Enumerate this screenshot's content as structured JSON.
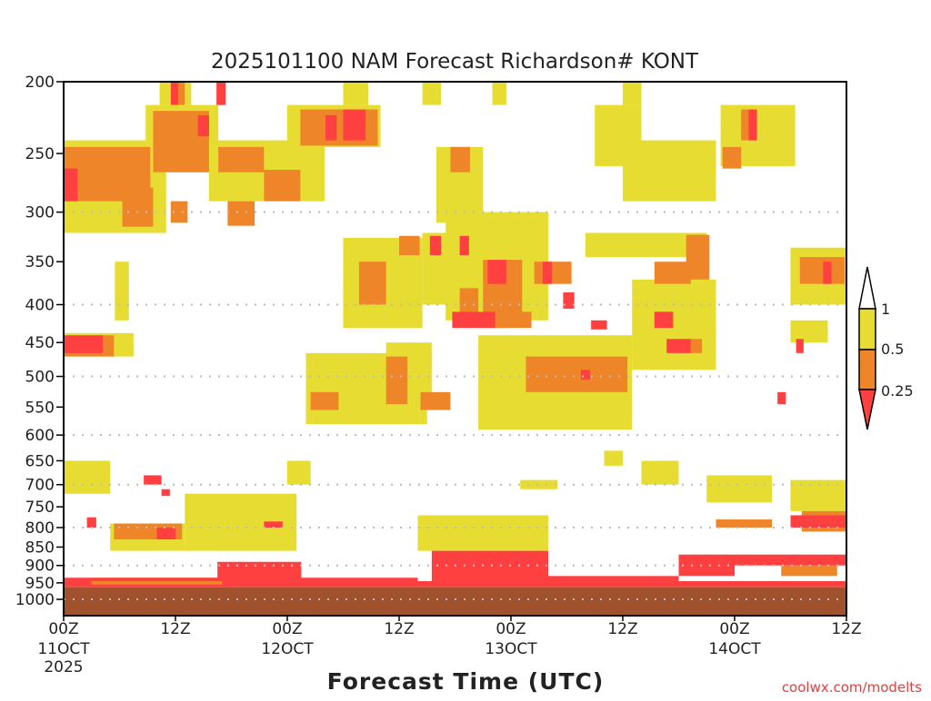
{
  "chart_data": {
    "type": "heatmap",
    "title": "2025101100 NAM Forecast Richardson# KONT",
    "xlabel": "Forecast Time (UTC)",
    "ylabel": "",
    "watermark": "coolwx.com/modelts",
    "x_unit": "forecast hour",
    "xlim": [
      0,
      84
    ],
    "y_unit": "hPa",
    "y_scale": "log",
    "ylim": [
      200,
      1052
    ],
    "y_ticks": [
      200,
      250,
      300,
      350,
      400,
      450,
      500,
      550,
      600,
      650,
      700,
      750,
      800,
      850,
      900,
      950,
      1000
    ],
    "y_gridlines": [
      300,
      400,
      500,
      600,
      700,
      800,
      900,
      1000
    ],
    "x_ticks": [
      {
        "hour": 0,
        "label": "00Z",
        "date": "11OCT",
        "year": "2025"
      },
      {
        "hour": 12,
        "label": "12Z"
      },
      {
        "hour": 24,
        "label": "00Z",
        "date": "12OCT"
      },
      {
        "hour": 36,
        "label": "12Z"
      },
      {
        "hour": 48,
        "label": "00Z",
        "date": "13OCT"
      },
      {
        "hour": 60,
        "label": "12Z"
      },
      {
        "hour": 72,
        "label": "00Z",
        "date": "14OCT"
      },
      {
        "hour": 84,
        "label": "12Z"
      }
    ],
    "legend": {
      "placement": "right",
      "bins": [
        {
          "name": "> 1",
          "color": "#ffffff"
        },
        {
          "name": "0.5 - 1",
          "color": "#e6dc32",
          "label": "1"
        },
        {
          "name": "0.25 - 0.5",
          "color": "#ef8529",
          "label": "0.5"
        },
        {
          "name": "< 0.25",
          "color": "#ff4040",
          "label": "0.25"
        }
      ]
    },
    "colors": {
      "y": "#e6dc32",
      "o": "#ef8529",
      "r": "#ff4040",
      "ground": "#a0522d"
    },
    "ground_pressure": 963,
    "patches_note": "each patch = [hour_start, hour_end, p_top, p_bottom, category] where category y=0.5-1, o=0.25-0.5, r=<0.25",
    "patches": [
      [
        0,
        11,
        240,
        320,
        "y"
      ],
      [
        8.8,
        16.6,
        215,
        265,
        "y"
      ],
      [
        10.3,
        13.7,
        200,
        215,
        "y"
      ],
      [
        15.6,
        22,
        240,
        290,
        "y"
      ],
      [
        21.5,
        28,
        240,
        290,
        "y"
      ],
      [
        24,
        34,
        215,
        245,
        "y"
      ],
      [
        30,
        32.7,
        200,
        215,
        "y"
      ],
      [
        30,
        38.5,
        325,
        430,
        "y"
      ],
      [
        34.6,
        39.5,
        450,
        550,
        "y"
      ],
      [
        26,
        39,
        465,
        580,
        "y"
      ],
      [
        40,
        45,
        245,
        310,
        "y"
      ],
      [
        41,
        52,
        300,
        420,
        "y"
      ],
      [
        38.5,
        44,
        320,
        400,
        "y"
      ],
      [
        44.5,
        61,
        440,
        590,
        "y"
      ],
      [
        57,
        62,
        215,
        260,
        "y"
      ],
      [
        56,
        69,
        320,
        345,
        "y"
      ],
      [
        60,
        70,
        240,
        290,
        "y"
      ],
      [
        61,
        70,
        370,
        490,
        "y"
      ],
      [
        70.5,
        78.5,
        215,
        260,
        "y"
      ],
      [
        78,
        84,
        335,
        400,
        "y"
      ],
      [
        78,
        82,
        420,
        450,
        "y"
      ],
      [
        62,
        66,
        650,
        700,
        "y"
      ],
      [
        69,
        76,
        680,
        740,
        "y"
      ],
      [
        78,
        84,
        690,
        760,
        "y"
      ],
      [
        0,
        5,
        650,
        720,
        "y"
      ],
      [
        0,
        7.5,
        437,
        470,
        "y"
      ],
      [
        5.5,
        7,
        350,
        420,
        "y"
      ],
      [
        13,
        25,
        720,
        860,
        "y"
      ],
      [
        5,
        13,
        790,
        860,
        "y"
      ],
      [
        38,
        52,
        770,
        860,
        "y"
      ],
      [
        24,
        26.5,
        650,
        700,
        "y"
      ],
      [
        49,
        53,
        690,
        710,
        "y"
      ],
      [
        58,
        60,
        630,
        660,
        "y"
      ],
      [
        46,
        47.5,
        200,
        215,
        "y"
      ],
      [
        38.5,
        40.5,
        200,
        215,
        "y"
      ],
      [
        60,
        62,
        200,
        215,
        "y"
      ],
      [
        0,
        84,
        945,
        963,
        "r"
      ],
      [
        0,
        9.3,
        245,
        290,
        "o"
      ],
      [
        6.3,
        9.6,
        278,
        314,
        "o"
      ],
      [
        9.6,
        15.6,
        219,
        265,
        "o"
      ],
      [
        16.6,
        21.5,
        245,
        265,
        "o"
      ],
      [
        17.6,
        20.5,
        290,
        313,
        "o"
      ],
      [
        11.5,
        13.3,
        290,
        310,
        "o"
      ],
      [
        21.5,
        25.4,
        263,
        290,
        "o"
      ],
      [
        25.4,
        33.7,
        218,
        244,
        "o"
      ],
      [
        31.7,
        34.6,
        350,
        400,
        "o"
      ],
      [
        36,
        38.2,
        323,
        343,
        "o"
      ],
      [
        34.6,
        36.9,
        470,
        545,
        "o"
      ],
      [
        26.5,
        29.5,
        525,
        555,
        "o"
      ],
      [
        38.3,
        41.5,
        525,
        555,
        "o"
      ],
      [
        41.5,
        43.6,
        245,
        265,
        "o"
      ],
      [
        45,
        49.2,
        348,
        430,
        "o"
      ],
      [
        46.3,
        50.2,
        409,
        430,
        "o"
      ],
      [
        42.5,
        44.5,
        380,
        410,
        "o"
      ],
      [
        49.6,
        60.5,
        470,
        525,
        "o"
      ],
      [
        50.5,
        54.5,
        350,
        375,
        "o"
      ],
      [
        63.4,
        67.3,
        350,
        375,
        "o"
      ],
      [
        66.8,
        69.3,
        322,
        370,
        "o"
      ],
      [
        63.4,
        65.4,
        409,
        430,
        "o"
      ],
      [
        67.3,
        68.5,
        445,
        465,
        "o"
      ],
      [
        70.7,
        72.7,
        245,
        262,
        "o"
      ],
      [
        72.7,
        74.3,
        218,
        240,
        "o"
      ],
      [
        79,
        83.8,
        345,
        375,
        "o"
      ],
      [
        0,
        5.4,
        440,
        470,
        "o"
      ],
      [
        5.4,
        12.7,
        790,
        830,
        "o"
      ],
      [
        79.2,
        84,
        760,
        810,
        "o"
      ],
      [
        70,
        76,
        780,
        800,
        "o"
      ],
      [
        77,
        83,
        900,
        930,
        "o"
      ],
      [
        3,
        17,
        935,
        955,
        "o"
      ],
      [
        12,
        13,
        200,
        215,
        "o"
      ],
      [
        0,
        1.5,
        262,
        290,
        "r"
      ],
      [
        14.4,
        15.6,
        222,
        237,
        "r"
      ],
      [
        11.5,
        12.3,
        200,
        215,
        "r"
      ],
      [
        16.4,
        17.4,
        200,
        215,
        "r"
      ],
      [
        28.1,
        29.3,
        222,
        240,
        "r"
      ],
      [
        30,
        32.4,
        218,
        240,
        "r"
      ],
      [
        39.3,
        40.5,
        323,
        343,
        "r"
      ],
      [
        42.5,
        43.5,
        323,
        343,
        "r"
      ],
      [
        45.5,
        47.5,
        348,
        375,
        "r"
      ],
      [
        41.7,
        46.3,
        409,
        430,
        "r"
      ],
      [
        51.4,
        52.4,
        350,
        375,
        "r"
      ],
      [
        53.6,
        54.8,
        385,
        405,
        "r"
      ],
      [
        56.6,
        58.3,
        420,
        432,
        "r"
      ],
      [
        55.5,
        56.5,
        490,
        505,
        "r"
      ],
      [
        63.4,
        65.4,
        409,
        430,
        "r"
      ],
      [
        64.7,
        67.3,
        445,
        465,
        "r"
      ],
      [
        73.5,
        74.4,
        218,
        240,
        "r"
      ],
      [
        81.5,
        82.4,
        350,
        375,
        "r"
      ],
      [
        76.6,
        77.5,
        525,
        545,
        "r"
      ],
      [
        78.6,
        79.4,
        445,
        465,
        "r"
      ],
      [
        0,
        4.2,
        440,
        465,
        "r"
      ],
      [
        8.6,
        10.5,
        680,
        700,
        "r"
      ],
      [
        10.5,
        11.4,
        710,
        725,
        "r"
      ],
      [
        10,
        12,
        800,
        830,
        "r"
      ],
      [
        21.5,
        23.5,
        785,
        800,
        "r"
      ],
      [
        2.5,
        3.5,
        775,
        800,
        "r"
      ],
      [
        16.5,
        25.5,
        890,
        945,
        "r"
      ],
      [
        39.5,
        52,
        860,
        945,
        "r"
      ],
      [
        66,
        72,
        870,
        930,
        "r"
      ],
      [
        72,
        84,
        870,
        900,
        "r"
      ],
      [
        0,
        17,
        935,
        945,
        "r"
      ],
      [
        25,
        38,
        935,
        945,
        "r"
      ],
      [
        52,
        66,
        930,
        945,
        "r"
      ],
      [
        78,
        84,
        770,
        800,
        "r"
      ]
    ]
  }
}
